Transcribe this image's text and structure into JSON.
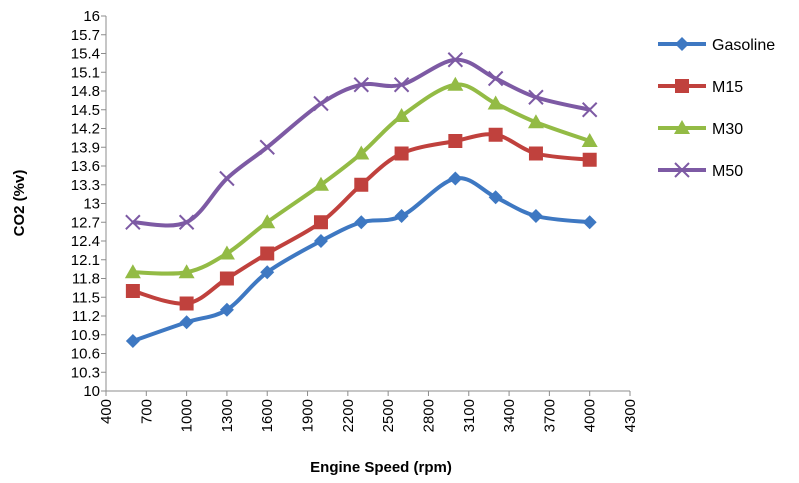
{
  "chart_data": {
    "type": "line",
    "xlabel": "Engine Speed (rpm)",
    "ylabel": "CO2 (%v)",
    "xlim": [
      400,
      4300
    ],
    "ylim": [
      10,
      16
    ],
    "xticks": [
      400,
      700,
      1000,
      1300,
      1600,
      1900,
      2200,
      2500,
      2800,
      3100,
      3400,
      3700,
      4000,
      4300
    ],
    "yticks": [
      10,
      10.3,
      10.6,
      10.9,
      11.2,
      11.5,
      11.8,
      12.1,
      12.4,
      12.7,
      13,
      13.3,
      13.6,
      13.9,
      14.2,
      14.5,
      14.8,
      15.1,
      15.4,
      15.7,
      16
    ],
    "grid": false,
    "legend_position": "right",
    "x": [
      600,
      1000,
      1300,
      1600,
      2000,
      2300,
      2600,
      3000,
      3300,
      3600,
      4000
    ],
    "series": [
      {
        "name": "Gasoline",
        "color": "#3e78c2",
        "marker": "diamond",
        "values": [
          10.8,
          11.1,
          11.3,
          11.9,
          12.4,
          12.7,
          12.8,
          13.4,
          13.1,
          12.8,
          12.7
        ]
      },
      {
        "name": "M15",
        "color": "#c0413d",
        "marker": "square",
        "values": [
          11.6,
          11.4,
          11.8,
          12.2,
          12.7,
          13.3,
          13.8,
          14.0,
          14.1,
          13.8,
          13.7
        ]
      },
      {
        "name": "M30",
        "color": "#93bb45",
        "marker": "triangle",
        "values": [
          11.9,
          11.9,
          12.2,
          12.7,
          13.3,
          13.8,
          14.4,
          14.9,
          14.6,
          14.3,
          14.0
        ]
      },
      {
        "name": "M50",
        "color": "#7d5aa4",
        "marker": "x",
        "values": [
          12.7,
          12.7,
          13.4,
          13.9,
          14.6,
          14.9,
          14.9,
          15.3,
          15.0,
          14.7,
          14.5
        ]
      }
    ]
  }
}
